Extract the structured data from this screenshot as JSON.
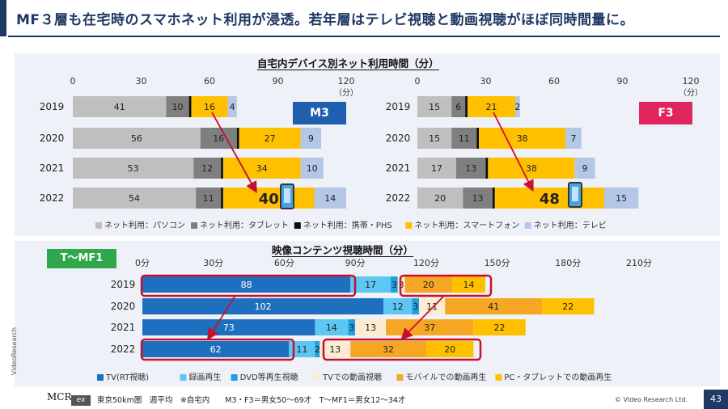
{
  "headline": "MF３層も在宅時のスマホネット利用が浸透。若年層はテレビ視聴と動画視聴がほぼ同時間量に。",
  "top_title": "自宅内デバイス別ネット利用時間（分）",
  "bottom_title": "映像コンテンツ視聴時間（分）",
  "badges": {
    "m3": "M3",
    "f3": "F3",
    "t": "T〜MF1"
  },
  "footer": "東京50km圏　週平均　※自宅内　　M3・F3＝男女50〜69才　T〜MF1＝男女12〜34才",
  "copyright": "© Video Research Ltd.",
  "page_number": "43",
  "vertical_label": "VideoResearch",
  "logo": {
    "text": "MCR",
    "sub": "ex"
  },
  "chart_data": [
    {
      "type": "bar",
      "orientation": "horizontal",
      "stacked": true,
      "panel": "M3",
      "categories": [
        "2019",
        "2020",
        "2021",
        "2022"
      ],
      "xlim": [
        0,
        120
      ],
      "xticks": [
        "0",
        "30",
        "60",
        "90",
        "120"
      ],
      "x_unit": "（分）",
      "series": [
        {
          "name": "ネット利用：パソコン",
          "color": "#bfbfbf",
          "values": [
            41,
            56,
            53,
            54
          ]
        },
        {
          "name": "ネット利用：タブレット",
          "color": "#7f7f7f",
          "values": [
            10,
            16,
            12,
            11
          ]
        },
        {
          "name": "ネット利用：携帯・PHS",
          "color": "#0d0d0d",
          "values": [
            1,
            1,
            1,
            1
          ]
        },
        {
          "name": "ネット利用：スマートフォン",
          "color": "#ffc000",
          "values": [
            16,
            27,
            34,
            40
          ]
        },
        {
          "name": "ネット利用：テレビ",
          "color": "#b4c7e7",
          "values": [
            4,
            9,
            10,
            14
          ]
        }
      ]
    },
    {
      "type": "bar",
      "orientation": "horizontal",
      "stacked": true,
      "panel": "F3",
      "categories": [
        "2019",
        "2020",
        "2021",
        "2022"
      ],
      "xlim": [
        0,
        120
      ],
      "xticks": [
        "0",
        "30",
        "60",
        "90",
        "120"
      ],
      "x_unit": "（分）",
      "series": [
        {
          "name": "ネット利用：パソコン",
          "color": "#bfbfbf",
          "values": [
            15,
            15,
            17,
            20
          ]
        },
        {
          "name": "ネット利用：タブレット",
          "color": "#7f7f7f",
          "values": [
            6,
            11,
            13,
            13
          ]
        },
        {
          "name": "ネット利用：携帯・PHS",
          "color": "#0d0d0d",
          "values": [
            1,
            1,
            1,
            1
          ]
        },
        {
          "name": "ネット利用：スマートフォン",
          "color": "#ffc000",
          "values": [
            21,
            38,
            38,
            48
          ]
        },
        {
          "name": "ネット利用：テレビ",
          "color": "#b4c7e7",
          "values": [
            2,
            7,
            9,
            15
          ]
        }
      ]
    },
    {
      "type": "bar",
      "orientation": "horizontal",
      "stacked": true,
      "panel": "T〜MF1",
      "categories": [
        "2019",
        "2020",
        "2021",
        "2022"
      ],
      "xlim": [
        0,
        210
      ],
      "xticks": [
        "0分",
        "30分",
        "60分",
        "90分",
        "120分",
        "150分",
        "180分",
        "210分"
      ],
      "series": [
        {
          "name": "TV(RT視聴)",
          "color": "#1f6fbf",
          "values": [
            88,
            102,
            73,
            62
          ]
        },
        {
          "name": "録画再生",
          "color": "#5cc7f2",
          "values": [
            17,
            12,
            14,
            11
          ]
        },
        {
          "name": "DVD等再生視聴",
          "color": "#1f9fe0",
          "values": [
            3,
            3,
            3,
            2
          ]
        },
        {
          "name": "TVでの動画視聴",
          "color": "#fcecd2",
          "values": [
            3,
            11,
            13,
            13
          ]
        },
        {
          "name": "モバイルでの動画再生",
          "color": "#f5a623",
          "values": [
            20,
            41,
            37,
            32
          ]
        },
        {
          "name": "PC・タブレットでの動画再生",
          "color": "#ffc000",
          "values": [
            14,
            22,
            22,
            20
          ]
        }
      ]
    }
  ]
}
